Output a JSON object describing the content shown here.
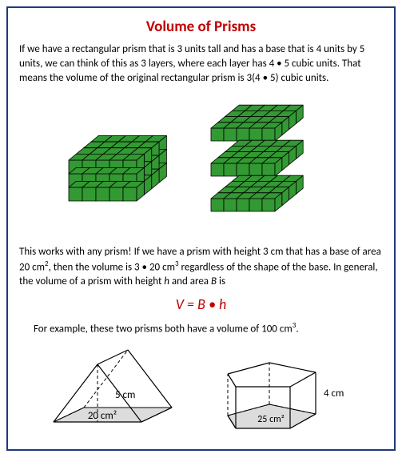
{
  "title": "Volume of Prisms",
  "paragraph1": "If we have a rectangular prism that is 3 units tall and has a base that is 4 units by 5 units, we can think of this as 3 layers, where each layer has 4 • 5 cubic units. That means the volume of the original rectangular prism is 3(4 • 5) cubic units.",
  "paragraph2_html": "This works with any prism!  If we have a prism with height 3 cm that has a base of area 20 cm<sup>2</sup>, then the volume is 3 • 20  cm<sup>3</sup> regardless of the shape of the base. In general, the volume of a prism with height <i>h</i> and area <i>B</i> is",
  "formula": "V = B • h",
  "paragraph3_html": "For example, these two prisms both have a volume of 100 cm<sup>3</sup>.",
  "cubes": {
    "fill": "#339933",
    "stroke": "#000000",
    "block_cols": 5,
    "block_rows_front": 3,
    "block_depth": 4,
    "layer_cols": 5,
    "layer_depth": 4,
    "layer_count": 3,
    "layer_v_gap": 32
  },
  "triPrism": {
    "base_label": "20 cm²",
    "height_label": "5 cm",
    "stroke": "#000000",
    "base_fill": "#dcdcdc"
  },
  "pentPrism": {
    "base_label": "25 cm²",
    "height_label": "4 cm",
    "stroke": "#000000",
    "base_fill": "#dcdcdc"
  }
}
